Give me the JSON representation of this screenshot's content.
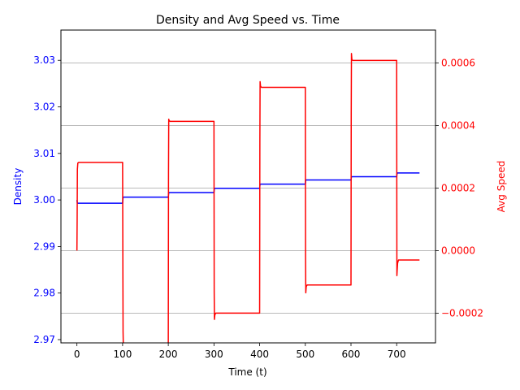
{
  "chart_data": {
    "type": "line",
    "title": "Density and Avg Speed vs. Time",
    "xlabel": "Time (t)",
    "x_ticks": [
      0,
      100,
      200,
      300,
      400,
      500,
      600,
      700
    ],
    "xlim": [
      -35,
      785
    ],
    "y_left": {
      "label": "Density",
      "color": "#0000ff",
      "lim": [
        2.9693,
        3.0365
      ],
      "ticks": [
        "2.97",
        "2.98",
        "2.99",
        "3.00",
        "3.01",
        "3.02",
        "3.03"
      ],
      "tick_values": [
        2.97,
        2.98,
        2.99,
        3.0,
        3.01,
        3.02,
        3.03
      ]
    },
    "y_right": {
      "label": "Avg Speed",
      "color": "#ff0000",
      "lim": [
        -0.000295,
        0.000705
      ],
      "ticks": [
        "−0.0002",
        "0.0000",
        "0.0002",
        "0.0004",
        "0.0006"
      ],
      "tick_values": [
        -0.0002,
        0.0,
        0.0002,
        0.0004,
        0.0006
      ],
      "grid": true
    },
    "series": [
      {
        "name": "Density",
        "axis": "left",
        "color": "#0000ff",
        "x": [
          0,
          1,
          100,
          101,
          200,
          201,
          300,
          301,
          400,
          401,
          500,
          501,
          600,
          601,
          700,
          701,
          750
        ],
        "y": [
          3.0,
          2.9993,
          2.9993,
          3.0006,
          3.0006,
          3.0016,
          3.0016,
          3.0025,
          3.0025,
          3.0034,
          3.0034,
          3.0043,
          3.0043,
          3.005,
          3.005,
          3.0058,
          3.0058
        ]
      },
      {
        "name": "Avg Speed",
        "axis": "right",
        "color": "#ff0000",
        "x": [
          0,
          0.5,
          1,
          2,
          4,
          100,
          100.5,
          101,
          101.5,
          200,
          200.5,
          201,
          202,
          204,
          300,
          300.5,
          301,
          302,
          304,
          400,
          400.5,
          401,
          402,
          404,
          500,
          500.5,
          501,
          502,
          504,
          600,
          600.5,
          601,
          602,
          604,
          700,
          700.5,
          701,
          702,
          704,
          750
        ],
        "y": [
          0.0,
          0.0001,
          0.00026,
          0.00028,
          0.000282,
          0.000282,
          0.0,
          -0.00026,
          -0.0003,
          -0.0003,
          0.00025,
          0.00042,
          0.000415,
          0.000413,
          0.000413,
          -0.00013,
          -0.00022,
          -0.000205,
          -0.0002,
          -0.0002,
          0.00035,
          0.00054,
          0.000525,
          0.000522,
          0.000522,
          -2e-05,
          -0.000135,
          -0.000115,
          -0.00011,
          -0.00011,
          0.00044,
          0.00063,
          0.00061,
          0.000608,
          0.000608,
          -8e-05,
          -6.5e-05,
          -4e-05,
          -3e-05,
          -3e-05
        ]
      }
    ]
  }
}
